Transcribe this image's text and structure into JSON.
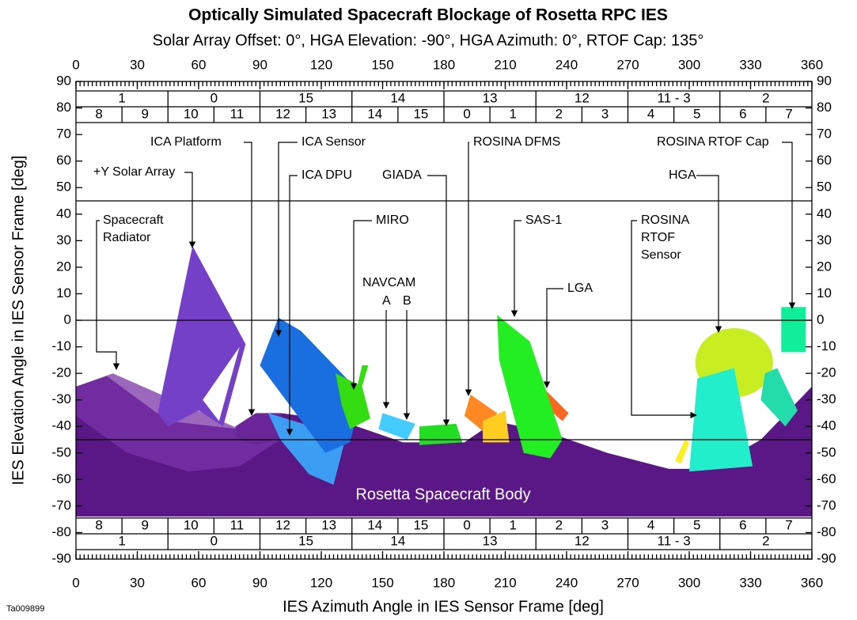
{
  "title": "Optically Simulated Spacecraft Blockage of Rosetta RPC IES",
  "subtitle": "Solar Array Offset:  0°, HGA Elevation:  -90°, HGA Azimuth:  0°, RTOF Cap:  135°",
  "x_axis": {
    "label": "IES Azimuth Angle in IES Sensor Frame [deg]",
    "ticks": [
      0,
      30,
      60,
      90,
      120,
      150,
      180,
      210,
      240,
      270,
      300,
      330,
      360
    ]
  },
  "y_axis": {
    "label": "IES Elevation Angle in IES Sensor Frame [deg]",
    "ticks": [
      90,
      80,
      70,
      60,
      50,
      40,
      30,
      20,
      10,
      0,
      -10,
      -20,
      -30,
      -40,
      -50,
      -60,
      -70,
      -80,
      -90
    ]
  },
  "sectors": {
    "groups": [
      "1",
      "0",
      "15",
      "14",
      "13",
      "12",
      "11 - 3",
      "2"
    ],
    "cells": [
      "8",
      "9",
      "10",
      "11",
      "12",
      "13",
      "14",
      "15",
      "0",
      "1",
      "2",
      "3",
      "4",
      "5",
      "6",
      "7"
    ]
  },
  "annotations": [
    {
      "lines": [
        "+Y Solar Array"
      ]
    },
    {
      "lines": [
        "ICA Platform"
      ]
    },
    {
      "lines": [
        "ICA Sensor"
      ]
    },
    {
      "lines": [
        "ICA DPU"
      ]
    },
    {
      "lines": [
        "GIADA"
      ]
    },
    {
      "lines": [
        "MIRO"
      ]
    },
    {
      "lines": [
        "NAVCAM"
      ]
    },
    {
      "lines": [
        "A"
      ]
    },
    {
      "lines": [
        "B"
      ]
    },
    {
      "lines": [
        "ROSINA DFMS"
      ]
    },
    {
      "lines": [
        "SAS-1"
      ]
    },
    {
      "lines": [
        "LGA"
      ]
    },
    {
      "lines": [
        "ROSINA",
        "RTOF",
        "Sensor"
      ]
    },
    {
      "lines": [
        "ROSINA RTOF Cap"
      ]
    },
    {
      "lines": [
        "HGA"
      ]
    },
    {
      "lines": [
        "Spacecraft",
        "Radiator"
      ]
    }
  ],
  "body_label": "Rosetta Spacecraft Body",
  "figure_id": "Ta009899"
}
